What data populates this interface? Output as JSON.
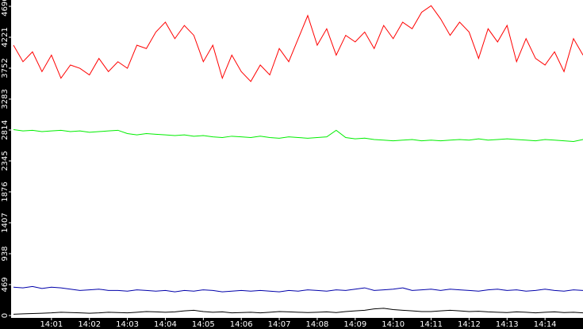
{
  "chart_data": {
    "type": "line",
    "categories": [
      null,
      null,
      null,
      null,
      "14:01",
      null,
      null,
      null,
      "14:02",
      null,
      null,
      null,
      "14:03",
      null,
      null,
      null,
      "14:04",
      null,
      null,
      null,
      "14:05",
      null,
      null,
      null,
      "14:06",
      null,
      null,
      null,
      "14:07",
      null,
      null,
      null,
      "14:08",
      null,
      null,
      null,
      "14:09",
      null,
      null,
      null,
      "14:10",
      null,
      null,
      null,
      "14:11",
      null,
      null,
      null,
      "14:12",
      null,
      null,
      null,
      "14:13",
      null,
      null,
      null,
      "14:14",
      null,
      null,
      null,
      null
    ],
    "series": [
      {
        "color": "#ff0000",
        "values": [
          4100,
          3850,
          4000,
          3700,
          3950,
          3600,
          3800,
          3750,
          3650,
          3900,
          3700,
          3850,
          3750,
          4100,
          4050,
          4300,
          4450,
          4200,
          4400,
          4250,
          3850,
          4100,
          3600,
          3950,
          3700,
          3550,
          3800,
          3650,
          4050,
          3850,
          4200,
          4550,
          4100,
          4350,
          3950,
          4250,
          4150,
          4300,
          4050,
          4400,
          4200,
          4450,
          4350,
          4600,
          4700,
          4500,
          4250,
          4450,
          4300,
          3900,
          4350,
          4150,
          4400,
          3850,
          4200,
          3900,
          3800,
          4000,
          3700,
          4200,
          3950
        ]
      },
      {
        "color": "#00ee00",
        "values": [
          2820,
          2800,
          2810,
          2790,
          2800,
          2810,
          2790,
          2800,
          2780,
          2790,
          2800,
          2810,
          2760,
          2740,
          2760,
          2750,
          2740,
          2730,
          2740,
          2720,
          2730,
          2710,
          2700,
          2720,
          2710,
          2700,
          2720,
          2700,
          2690,
          2710,
          2700,
          2690,
          2700,
          2710,
          2810,
          2700,
          2680,
          2690,
          2670,
          2660,
          2650,
          2660,
          2670,
          2650,
          2660,
          2650,
          2660,
          2670,
          2660,
          2680,
          2660,
          2670,
          2680,
          2670,
          2660,
          2650,
          2670,
          2660,
          2650,
          2640,
          2670
        ]
      },
      {
        "color": "#0000aa",
        "values": [
          430,
          420,
          440,
          410,
          430,
          420,
          400,
          380,
          390,
          400,
          380,
          380,
          370,
          390,
          380,
          370,
          380,
          360,
          380,
          370,
          390,
          380,
          360,
          370,
          380,
          370,
          380,
          370,
          360,
          380,
          370,
          390,
          380,
          370,
          390,
          380,
          400,
          420,
          380,
          390,
          400,
          420,
          380,
          390,
          400,
          380,
          400,
          390,
          380,
          370,
          390,
          400,
          380,
          390,
          370,
          380,
          400,
          380,
          370,
          390,
          380
        ]
      },
      {
        "color": "#000000",
        "values": [
          20,
          25,
          30,
          35,
          40,
          50,
          45,
          40,
          35,
          40,
          50,
          45,
          40,
          50,
          60,
          55,
          50,
          55,
          70,
          80,
          60,
          50,
          55,
          40,
          45,
          50,
          40,
          50,
          60,
          55,
          50,
          45,
          50,
          55,
          45,
          60,
          70,
          80,
          100,
          110,
          90,
          80,
          70,
          60,
          60,
          70,
          80,
          70,
          60,
          65,
          55,
          50,
          45,
          55,
          50,
          40,
          50,
          55,
          45,
          50,
          40
        ]
      }
    ],
    "ylim": [
      0,
      4690
    ],
    "yticks": [
      0,
      469,
      938,
      1407,
      1876,
      2345,
      2814,
      3283,
      3752,
      4221,
      4690
    ]
  }
}
